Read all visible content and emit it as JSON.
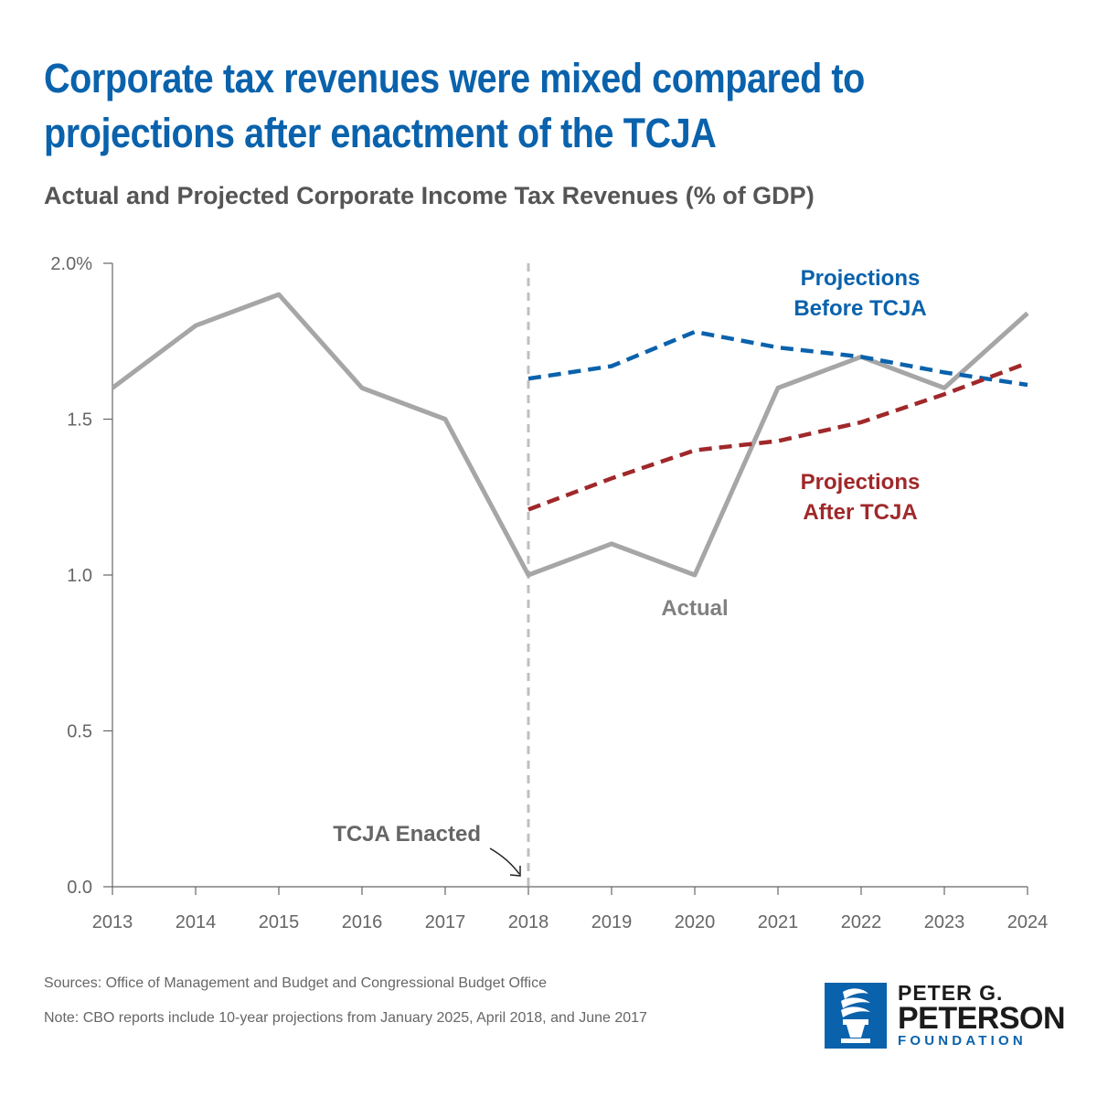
{
  "header": {
    "title": "Corporate tax revenues were mixed compared to projections after enactment of the TCJA",
    "subtitle": "Actual and Projected Corporate Income Tax Revenues (% of GDP)"
  },
  "chart_data": {
    "type": "line",
    "title": "Corporate tax revenues were mixed compared to projections after enactment of the TCJA",
    "subtitle": "Actual and Projected Corporate Income Tax Revenues (% of GDP)",
    "xlabel": "",
    "ylabel": "",
    "x_ticks": [
      "2013",
      "2014",
      "2015",
      "2016",
      "2017",
      "2018",
      "2019",
      "2020",
      "2021",
      "2022",
      "2023",
      "2024"
    ],
    "y_ticks": [
      "0.0",
      "0.5",
      "1.0",
      "1.5",
      "2.0%"
    ],
    "y_tick_values": [
      0.0,
      0.5,
      1.0,
      1.5,
      2.0
    ],
    "xlim": [
      2013,
      2024
    ],
    "ylim": [
      0,
      2.0
    ],
    "grid": false,
    "series": [
      {
        "name": "Actual",
        "color": "#a6a6a6",
        "style": "solid",
        "x": [
          2013,
          2014,
          2015,
          2016,
          2017,
          2018,
          2019,
          2020,
          2021,
          2022,
          2023,
          2024
        ],
        "values": [
          1.6,
          1.8,
          1.9,
          1.6,
          1.5,
          1.0,
          1.1,
          1.0,
          1.6,
          1.7,
          1.6,
          1.84
        ]
      },
      {
        "name": "Projections Before TCJA",
        "color": "#0a62ac",
        "style": "dashed",
        "x": [
          2018,
          2019,
          2020,
          2021,
          2022,
          2023,
          2024
        ],
        "values": [
          1.63,
          1.67,
          1.78,
          1.73,
          1.7,
          1.65,
          1.61
        ]
      },
      {
        "name": "Projections After TCJA",
        "color": "#a0282a",
        "style": "dashed",
        "x": [
          2018,
          2019,
          2020,
          2021,
          2022,
          2023,
          2024
        ],
        "values": [
          1.21,
          1.31,
          1.4,
          1.43,
          1.49,
          1.58,
          1.68
        ]
      }
    ],
    "reference_line": {
      "x": 2018,
      "label": "TCJA Enacted",
      "color": "#bfbfbf",
      "style": "dashed"
    },
    "annotations": [
      {
        "text_lines": [
          "Projections",
          "Before TCJA"
        ],
        "series": "Projections Before TCJA",
        "color": "#0a62ac"
      },
      {
        "text_lines": [
          "Projections",
          "After TCJA"
        ],
        "series": "Projections After TCJA",
        "color": "#a0282a"
      },
      {
        "text_lines": [
          "Actual"
        ],
        "series": "Actual",
        "color": "#808080"
      }
    ]
  },
  "footer": {
    "sources": "Sources: Office of Management and Budget and Congressional Budget Office",
    "note": "Note: CBO reports include 10-year projections from January 2025, April 2018, and June 2017"
  },
  "logo": {
    "line1": "PETER G.",
    "line2": "PETERSON",
    "line3": "FOUNDATION",
    "icon": "torch-icon",
    "color": "#0a62ac"
  }
}
